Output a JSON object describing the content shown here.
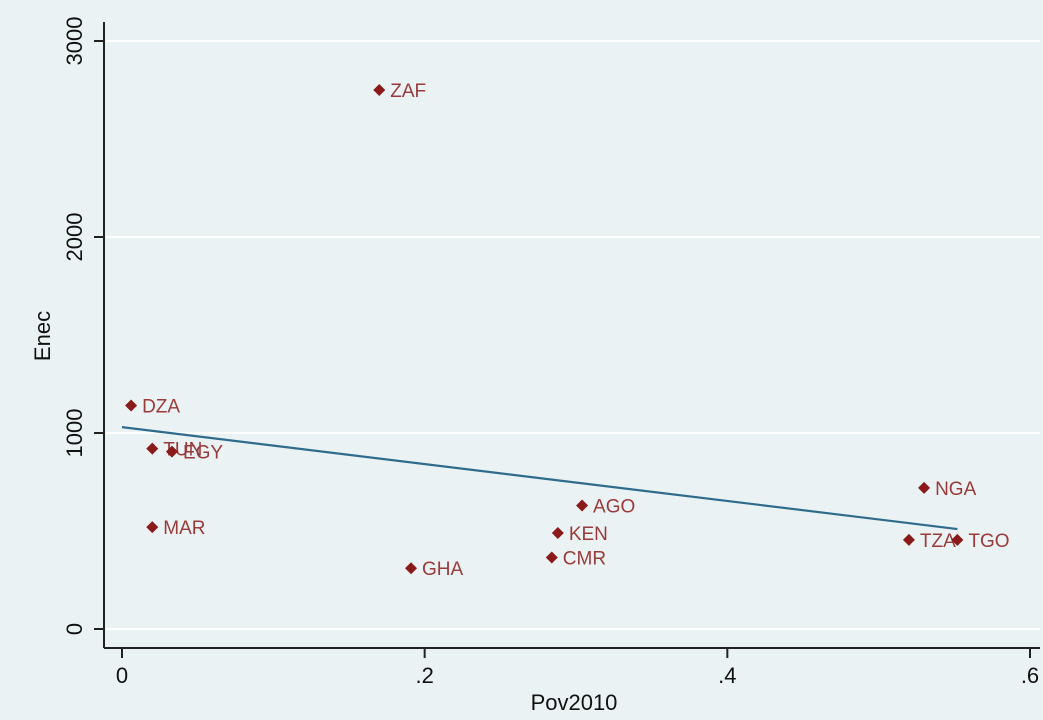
{
  "chart_data": {
    "type": "scatter",
    "title": "",
    "xlabel": "Pov2010",
    "ylabel": "Enec",
    "xlim": [
      -0.01,
      0.605
    ],
    "ylim": [
      -50,
      3050
    ],
    "x_ticks": [
      {
        "value": 0,
        "label": "0"
      },
      {
        "value": 0.2,
        "label": ".2"
      },
      {
        "value": 0.4,
        "label": ".4"
      },
      {
        "value": 0.6,
        "label": ".6"
      }
    ],
    "y_ticks": [
      {
        "value": 0,
        "label": "0"
      },
      {
        "value": 1000,
        "label": "1000"
      },
      {
        "value": 2000,
        "label": "2000"
      },
      {
        "value": 3000,
        "label": "3000"
      }
    ],
    "grid": true,
    "points": [
      {
        "label": "ZAF",
        "x": 0.17,
        "y": 2750
      },
      {
        "label": "DZA",
        "x": 0.006,
        "y": 1140
      },
      {
        "label": "TUN",
        "x": 0.02,
        "y": 920
      },
      {
        "label": "EGY",
        "x": 0.033,
        "y": 905
      },
      {
        "label": "MAR",
        "x": 0.02,
        "y": 520
      },
      {
        "label": "GHA",
        "x": 0.191,
        "y": 310
      },
      {
        "label": "AGO",
        "x": 0.304,
        "y": 630
      },
      {
        "label": "KEN",
        "x": 0.288,
        "y": 490
      },
      {
        "label": "CMR",
        "x": 0.284,
        "y": 365
      },
      {
        "label": "NGA",
        "x": 0.53,
        "y": 720
      },
      {
        "label": "TZA",
        "x": 0.52,
        "y": 455
      },
      {
        "label": "TGO",
        "x": 0.552,
        "y": 455
      }
    ],
    "fit_line": {
      "x": [
        0.0,
        0.552
      ],
      "y": [
        1030,
        510
      ]
    },
    "colors": {
      "point": "#8b1a1a",
      "label": "#9b3a3a",
      "fit_line": "#2f6b8c",
      "grid": "#ffffff",
      "plot_background": "#eaf2f3",
      "axis": "#222222"
    }
  }
}
